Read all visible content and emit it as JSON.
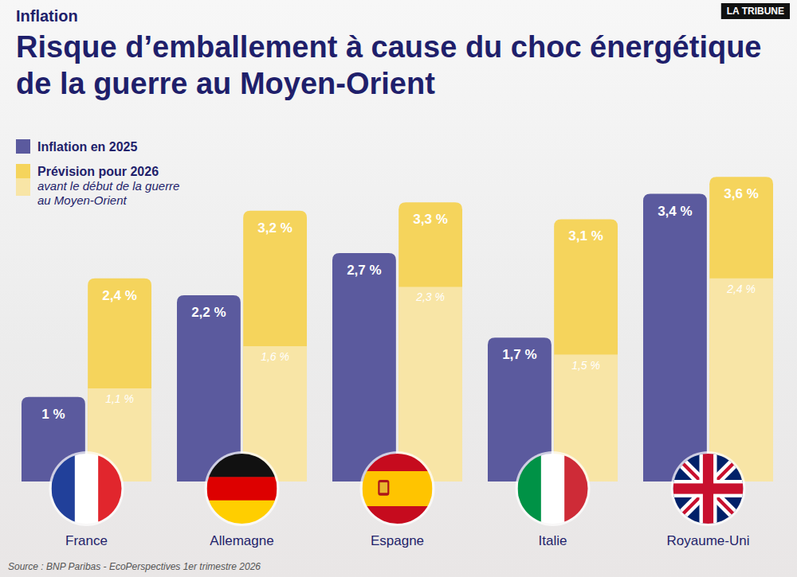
{
  "chart_data": {
    "type": "bar",
    "subtitle": "Inflation",
    "title": "Risque d’emballement à cause du choc énergétique de la guerre au Moyen-Orient",
    "annotations": [
      "LA TRIBUNE"
    ],
    "source": "Source : BNP Paribas - EcoPerspectives 1er trimestre 2026",
    "categories": [
      "France",
      "Allemagne",
      "Espagne",
      "Italie",
      "Royaume-Uni"
    ],
    "series": [
      {
        "name": "Inflation en 2025",
        "color": "#5b5a9e",
        "type": "bar",
        "values": [
          1,
          2.2,
          2.7,
          1.7,
          3.4
        ],
        "value_labels": [
          "1 %",
          "2,2 %",
          "2,7 %",
          "1,7 %",
          "3,4 %"
        ]
      },
      {
        "name": "Prévision pour 2026",
        "color": "#f5d45c",
        "type": "bar",
        "values": [
          2.4,
          3.2,
          3.3,
          3.1,
          3.6
        ],
        "value_labels": [
          "2,4 %",
          "3,2 %",
          "3,3 %",
          "3,1 %",
          "3,6 %"
        ]
      },
      {
        "name": "avant le début de la guerre au Moyen-Orient",
        "color": "#f8e5a6",
        "type": "overlay",
        "values": [
          1.1,
          1.6,
          2.3,
          1.5,
          2.4
        ],
        "value_labels": [
          "1,1 %",
          "1,6 %",
          "2,3 %",
          "1,5 %",
          "2,4 %"
        ]
      }
    ],
    "ylim": [
      0,
      3.8
    ],
    "stacked": false,
    "grid": false,
    "tick_labels": false,
    "data_labels": true,
    "legend": "top-left"
  }
}
